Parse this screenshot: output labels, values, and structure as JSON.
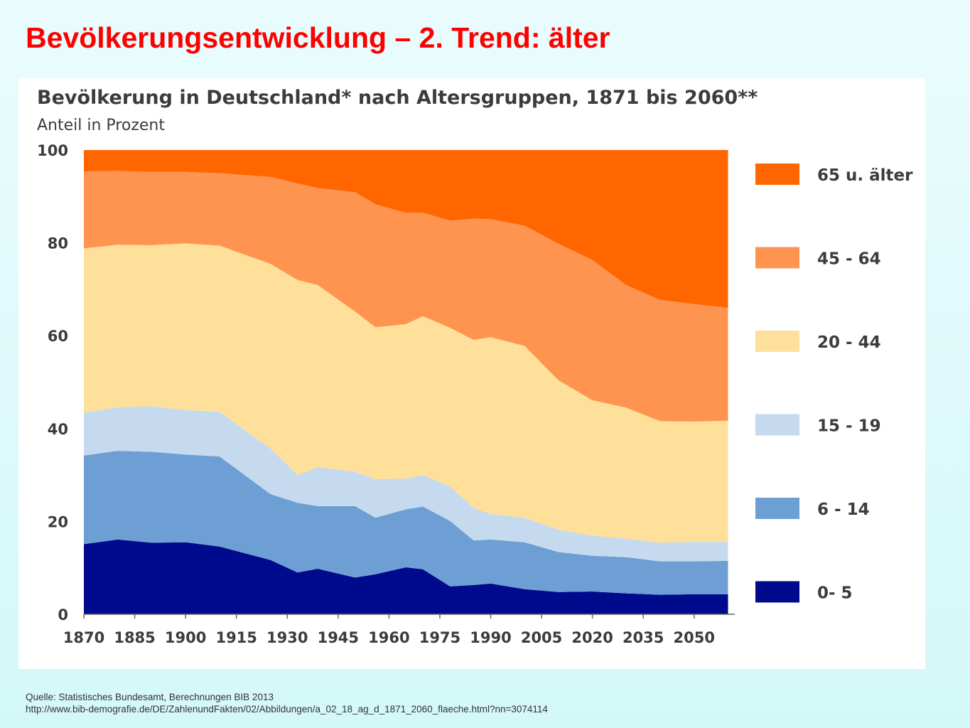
{
  "slide": {
    "title": "Bevölkerungsentwicklung – 2. Trend: älter",
    "source_line1": "Quelle: Statistisches Bundesamt, Berechnungen BIB 2013",
    "source_line2": "http://www.bib-demografie.de/DE/ZahlenundFakten/02/Abbildungen/a_02_18_ag_d_1871_2060_flaeche.html?nn=3074114"
  },
  "chart_data": {
    "type": "area",
    "stacked": true,
    "title": "Bevölkerung in Deutschland* nach Altersgruppen, 1871 bis 2060**",
    "subtitle": "Anteil in Prozent",
    "xlabel": "",
    "ylabel": "",
    "xlim": [
      1870,
      2062
    ],
    "ylim": [
      0,
      100
    ],
    "x_ticks": [
      1870,
      1885,
      1900,
      1915,
      1930,
      1945,
      1960,
      1975,
      1990,
      2005,
      2020,
      2035,
      2050
    ],
    "y_ticks": [
      0,
      20,
      40,
      60,
      80,
      100
    ],
    "legend_position": "right",
    "x": [
      1870,
      1880,
      1890,
      1900,
      1910,
      1925,
      1933,
      1939,
      1950,
      1956,
      1965,
      1970,
      1978,
      1985,
      1990,
      2000,
      2010,
      2020,
      2030,
      2040,
      2050,
      2060
    ],
    "series": [
      {
        "name": "0-  5",
        "color": "#000a8c",
        "values": [
          15.1,
          16.1,
          15.4,
          15.5,
          14.6,
          11.7,
          9.0,
          9.8,
          7.9,
          8.6,
          10.1,
          9.7,
          6.0,
          6.3,
          6.6,
          5.4,
          4.8,
          4.9,
          4.5,
          4.2,
          4.3,
          4.3
        ]
      },
      {
        "name": "6 - 14",
        "color": "#6e9fd4",
        "values": [
          19.1,
          19.1,
          19.6,
          18.9,
          19.4,
          14.2,
          15.0,
          13.5,
          15.4,
          12.2,
          12.5,
          13.5,
          14.1,
          9.6,
          9.5,
          10.1,
          8.6,
          7.7,
          7.8,
          7.2,
          7.1,
          7.2
        ]
      },
      {
        "name": "15 - 19",
        "color": "#c5d9ef",
        "values": [
          9.2,
          9.4,
          9.8,
          9.6,
          9.6,
          9.8,
          6.0,
          8.4,
          7.4,
          8.3,
          6.6,
          6.8,
          7.4,
          7.0,
          5.5,
          5.3,
          4.8,
          4.3,
          4.0,
          4.0,
          4.2,
          4.1
        ]
      },
      {
        "name": "20 - 44",
        "color": "#fee09a",
        "values": [
          35.4,
          35.0,
          34.7,
          35.9,
          35.8,
          39.8,
          42.0,
          39.2,
          34.5,
          32.7,
          33.3,
          34.2,
          34.2,
          36.2,
          38.1,
          37.0,
          32.2,
          29.2,
          28.2,
          26.2,
          25.9,
          26.1
        ]
      },
      {
        "name": "45 - 64",
        "color": "#ff9450",
        "values": [
          16.6,
          15.9,
          15.8,
          15.4,
          15.6,
          18.7,
          20.8,
          20.9,
          25.7,
          26.5,
          24.0,
          22.3,
          23.1,
          26.1,
          25.4,
          25.9,
          29.4,
          30.2,
          26.4,
          26.1,
          25.3,
          24.3
        ]
      },
      {
        "name": "65 u. älter",
        "color": "#ff6600",
        "values": [
          4.6,
          4.5,
          4.7,
          4.7,
          5.0,
          5.8,
          7.2,
          8.2,
          9.1,
          11.7,
          13.5,
          13.5,
          15.2,
          14.8,
          14.9,
          16.3,
          20.2,
          23.7,
          29.1,
          32.3,
          33.2,
          34.0
        ]
      }
    ]
  }
}
